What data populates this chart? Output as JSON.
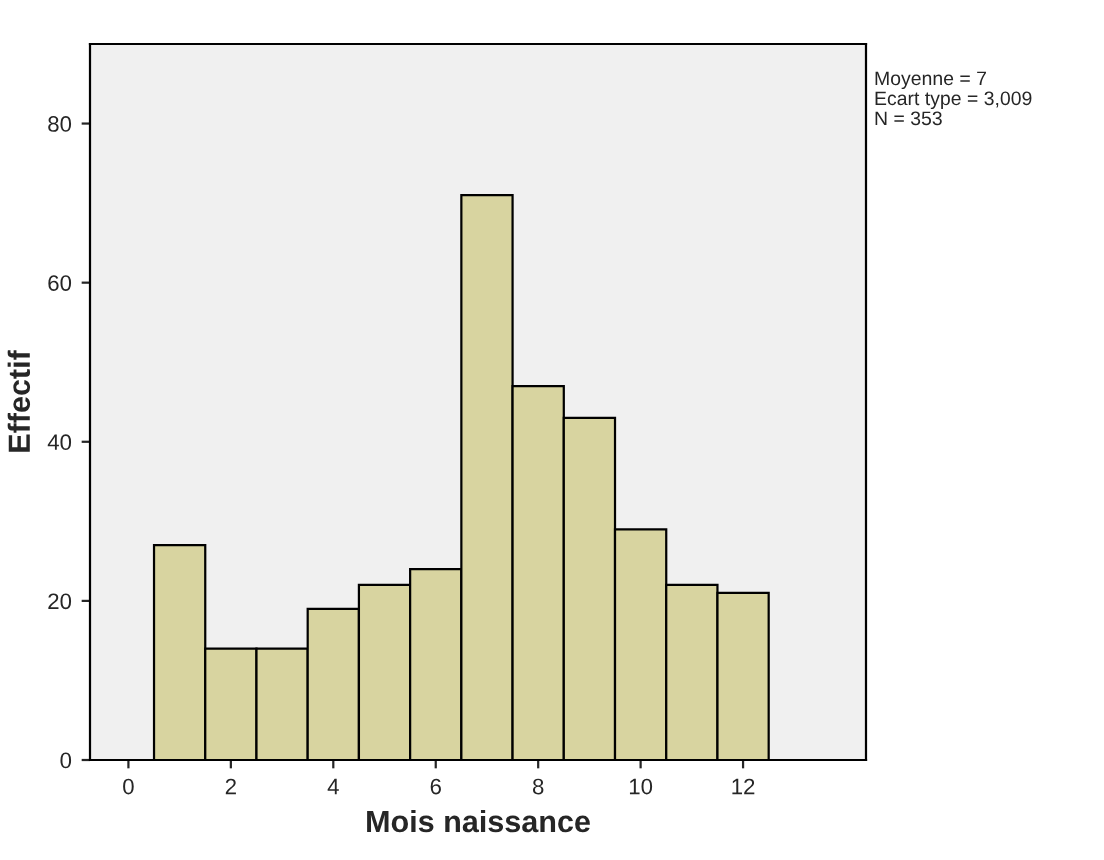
{
  "chart_data": {
    "type": "histogram",
    "xlabel": "Mois naissance",
    "ylabel": "Effectif",
    "bins": [
      0.5,
      1.5,
      2.5,
      3.5,
      4.5,
      5.5,
      6.5,
      7.5,
      8.5,
      9.5,
      10.5,
      11.5,
      12.5
    ],
    "values": [
      27,
      14,
      14,
      19,
      22,
      24,
      71,
      47,
      43,
      29,
      22,
      21
    ],
    "color": "#d8d4a0",
    "xlim": [
      -0.75,
      14.4
    ],
    "xticks": [
      0,
      2,
      4,
      6,
      8,
      10,
      12
    ],
    "ylim": [
      0,
      90
    ],
    "yticks": [
      0,
      20,
      40,
      60,
      80
    ],
    "grid": false,
    "annotations": [
      "Moyenne = 7",
      "Ecart type = 3,009",
      "N = 353"
    ]
  }
}
